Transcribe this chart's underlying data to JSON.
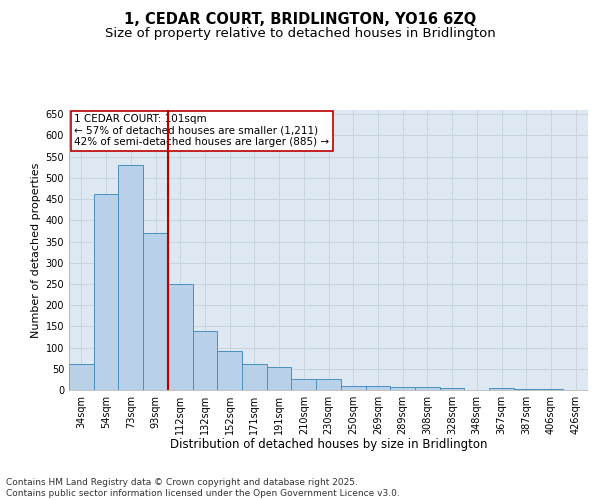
{
  "title_line1": "1, CEDAR COURT, BRIDLINGTON, YO16 6ZQ",
  "title_line2": "Size of property relative to detached houses in Bridlington",
  "xlabel": "Distribution of detached houses by size in Bridlington",
  "ylabel": "Number of detached properties",
  "categories": [
    "34sqm",
    "54sqm",
    "73sqm",
    "93sqm",
    "112sqm",
    "132sqm",
    "152sqm",
    "171sqm",
    "191sqm",
    "210sqm",
    "230sqm",
    "250sqm",
    "269sqm",
    "289sqm",
    "308sqm",
    "328sqm",
    "348sqm",
    "367sqm",
    "387sqm",
    "406sqm",
    "426sqm"
  ],
  "values": [
    62,
    462,
    530,
    370,
    250,
    140,
    93,
    62,
    55,
    25,
    25,
    10,
    10,
    6,
    8,
    4,
    1,
    5,
    3,
    2,
    1
  ],
  "bar_color": "#b8d0e8",
  "bar_edge_color": "#4a8fc0",
  "vline_x_index": 3,
  "vline_color": "#bb0000",
  "annotation_text": "1 CEDAR COURT: 101sqm\n← 57% of detached houses are smaller (1,211)\n42% of semi-detached houses are larger (885) →",
  "annotation_box_color": "white",
  "annotation_box_edge": "#bb0000",
  "annotation_fontsize": 7.5,
  "ylim": [
    0,
    660
  ],
  "yticks": [
    0,
    50,
    100,
    150,
    200,
    250,
    300,
    350,
    400,
    450,
    500,
    550,
    600,
    650
  ],
  "grid_color": "#c8d4e0",
  "bg_color": "#dde8f2",
  "footer_text": "Contains HM Land Registry data © Crown copyright and database right 2025.\nContains public sector information licensed under the Open Government Licence v3.0.",
  "title_fontsize": 10.5,
  "subtitle_fontsize": 9.5,
  "xlabel_fontsize": 8.5,
  "ylabel_fontsize": 8,
  "tick_fontsize": 7,
  "footer_fontsize": 6.5
}
